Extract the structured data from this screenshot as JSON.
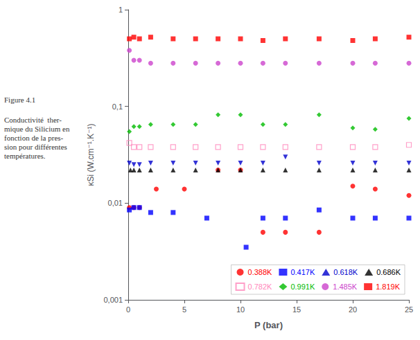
{
  "chart_data": {
    "type": "scatter",
    "x_label": "P (bar)",
    "y_label": "κSi (W.cm⁻¹.K⁻¹)",
    "annotations": [
      "Figure 4.1",
      "Conductivité  ther-\nmique du Silicium en\nfonction de la pres-\nsion pour différentes\ntempératures."
    ],
    "log": "y",
    "grid": false,
    "legend": "lower right",
    "xlim": [
      0,
      25
    ],
    "ylim": [
      0.001,
      1
    ],
    "xticks": [
      0,
      5,
      10,
      15,
      20,
      25
    ],
    "yticks": [
      {
        "value": 0.001,
        "label": "0,001"
      },
      {
        "value": 0.01,
        "label": "0,01"
      },
      {
        "value": 0.1,
        "label": "0,1"
      },
      1
    ],
    "series": [
      {
        "name": "0.388K",
        "color": "#ff0000",
        "marker": "circle",
        "x": [
          0.1,
          0.5,
          1.0,
          2.5,
          5.0,
          8.0,
          10.0,
          12.0,
          14.0,
          17.0,
          20.0,
          22.0,
          25.0
        ],
        "values": [
          0.009,
          0.009,
          0.009,
          0.014,
          0.014,
          0.022,
          0.022,
          0.005,
          0.005,
          0.005,
          0.015,
          0.014,
          0.012
        ]
      },
      {
        "name": "0.417K",
        "color": "#0000ff",
        "marker": "square",
        "x": [
          0.1,
          0.5,
          1.0,
          2.0,
          4.0,
          7.0,
          10.5,
          12.0,
          14.0,
          17.0,
          20.0,
          22.0,
          25.0
        ],
        "values": [
          0.0085,
          0.009,
          0.009,
          0.008,
          0.008,
          0.007,
          0.0035,
          0.007,
          0.007,
          0.0085,
          0.007,
          0.007,
          0.007
        ]
      },
      {
        "name": "0.618K",
        "color": "#0000cd",
        "marker": "triangle_down",
        "x": [
          0.1,
          0.5,
          1.0,
          2.0,
          4.0,
          6.0,
          8.0,
          10.0,
          12.0,
          14.0,
          17.0,
          20.0,
          22.0,
          25.0
        ],
        "values": [
          0.026,
          0.025,
          0.025,
          0.026,
          0.026,
          0.026,
          0.026,
          0.026,
          0.026,
          0.03,
          0.026,
          0.026,
          0.026,
          0.026
        ]
      },
      {
        "name": "0.686K",
        "color": "#000000",
        "marker": "triangle_up",
        "x": [
          0.2,
          0.5,
          1.0,
          2.0,
          4.0,
          6.0,
          8.0,
          10.0,
          12.0,
          14.0,
          17.0,
          20.0,
          22.0,
          25.0
        ],
        "values": [
          0.022,
          0.022,
          0.022,
          0.022,
          0.022,
          0.022,
          0.022,
          0.022,
          0.022,
          0.022,
          0.022,
          0.022,
          0.022,
          0.022
        ]
      },
      {
        "name": "0.782K",
        "color": "#ff88bb",
        "marker": "square_open",
        "x": [
          0.1,
          0.5,
          1.0,
          2.0,
          4.0,
          6.0,
          8.0,
          10.0,
          12.0,
          14.0,
          17.0,
          20.0,
          22.0,
          25.0
        ],
        "values": [
          0.042,
          0.038,
          0.038,
          0.038,
          0.038,
          0.038,
          0.038,
          0.038,
          0.038,
          0.038,
          0.038,
          0.038,
          0.038,
          0.04
        ]
      },
      {
        "name": "0.991K",
        "color": "#00bb00",
        "marker": "diamond",
        "x": [
          0.1,
          0.5,
          1.0,
          2.0,
          4.0,
          6.0,
          8.0,
          10.0,
          12.0,
          14.0,
          17.0,
          20.0,
          22.0,
          25.0
        ],
        "values": [
          0.055,
          0.062,
          0.062,
          0.065,
          0.065,
          0.065,
          0.082,
          0.082,
          0.065,
          0.065,
          0.082,
          0.06,
          0.058,
          0.075
        ]
      },
      {
        "name": "1.485K",
        "color": "#cc44cc",
        "marker": "circle",
        "x": [
          0.1,
          0.5,
          1.0,
          2.0,
          4.0,
          6.0,
          8.0,
          10.0,
          12.0,
          14.0,
          17.0,
          20.0,
          22.0,
          25.0
        ],
        "values": [
          0.38,
          0.3,
          0.3,
          0.28,
          0.28,
          0.28,
          0.28,
          0.28,
          0.28,
          0.28,
          0.28,
          0.28,
          0.28,
          0.28
        ]
      },
      {
        "name": "1.819K",
        "color": "#ff0000",
        "marker": "square",
        "x": [
          0.1,
          0.5,
          1.0,
          2.0,
          4.0,
          6.0,
          8.0,
          10.0,
          12.0,
          14.0,
          17.0,
          20.0,
          22.0,
          25.0
        ],
        "values": [
          0.5,
          0.52,
          0.5,
          0.52,
          0.5,
          0.5,
          0.5,
          0.5,
          0.48,
          0.5,
          0.5,
          0.48,
          0.5,
          0.52
        ]
      }
    ]
  }
}
